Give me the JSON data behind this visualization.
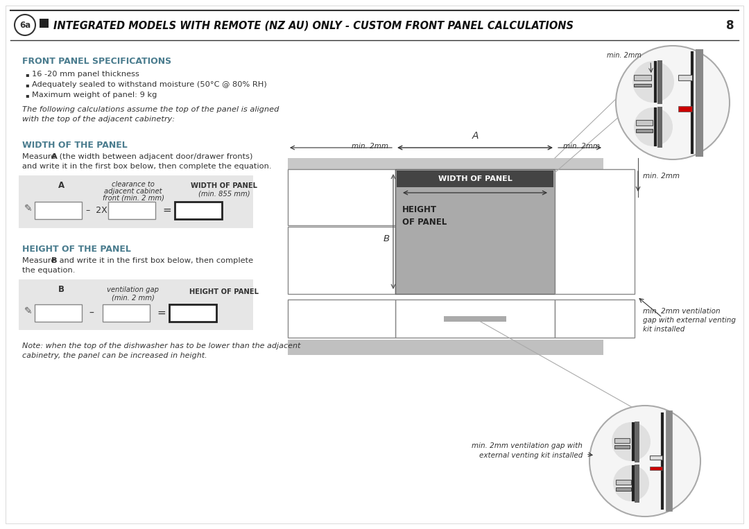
{
  "title": "INTEGRATED MODELS WITH REMOTE (NZ AU) ONLY - CUSTOM FRONT PANEL CALCULATIONS",
  "page_number": "8",
  "section_label": "6a",
  "bg_color": "#ffffff",
  "teal_color": "#4a7c8e",
  "dark_gray": "#444444",
  "med_gray": "#999999",
  "light_gray": "#cccccc",
  "bullets": [
    "16 -20 mm panel thickness",
    "Adequately sealed to withstand moisture (50°C @ 80% RH)",
    "Maximum weight of panel: 9 kg"
  ],
  "italic_note": "The following calculations assume the top of the panel is aligned\nwith the top of the adjacent cabinetry:",
  "width_heading": "WIDTH OF THE PANEL",
  "width_body1": "Measure ",
  "width_bold": "A",
  "width_body2": " (the width between adjacent door/drawer fronts)",
  "width_body3": "and write it in the first box below, then complete the equation.",
  "height_heading": "HEIGHT OF THE PANEL",
  "height_body1": "Measure ",
  "height_bold": "B",
  "height_body2": " and write it in the first box below, then complete",
  "height_body3": "the equation.",
  "note_italic": "Note: when the top of the dishwasher has to be lower than the adjacent\ncabinetry, the panel can be increased in height.",
  "label_A": "A",
  "label_B": "B",
  "min2mm": "min. 2mm",
  "width_panel_label": "WIDTH OF PANEL",
  "height_panel_label": "HEIGHT\nOF PANEL",
  "vent_label": "min. 2mm ventilation\ngap with external venting\nkit installed",
  "vent_label2": "min. 2mm ventilation gap with\nexternal venting kit installed",
  "spec_heading": "FRONT PANEL SPECIFICATIONS"
}
